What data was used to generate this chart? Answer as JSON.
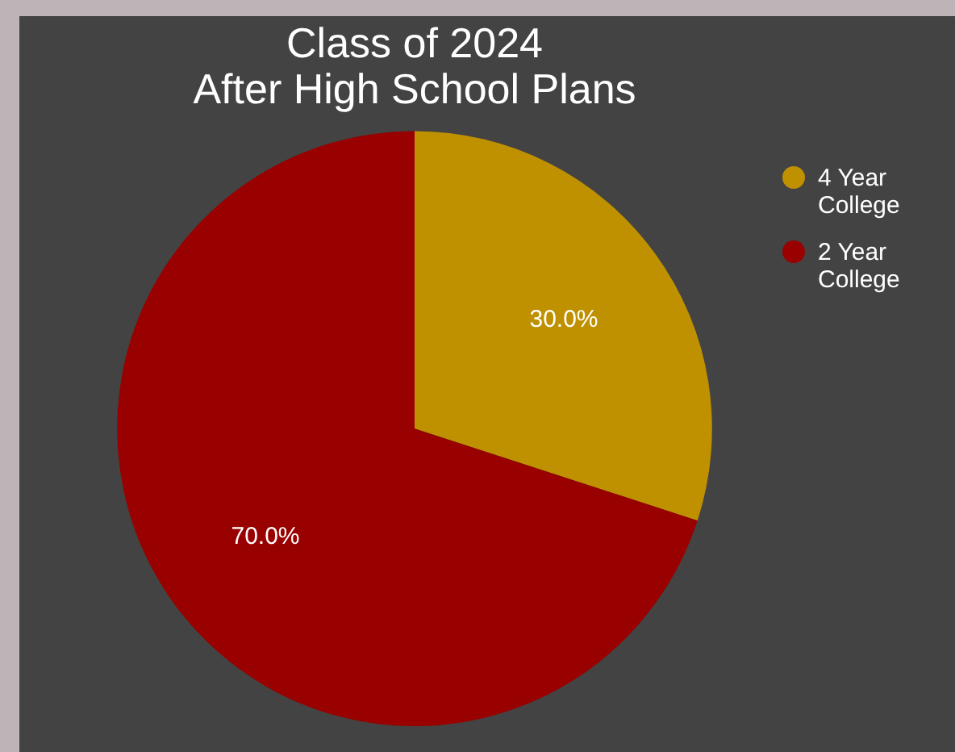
{
  "chart_data": {
    "type": "pie",
    "title": "Class of 2024\nAfter High School Plans",
    "categories": [
      "4 Year College",
      "2 Year College"
    ],
    "values": [
      30,
      70
    ],
    "colors": [
      "#bf9000",
      "#990000"
    ],
    "value_labels": [
      "30.0%",
      "70.0%"
    ],
    "legend": "top right"
  }
}
